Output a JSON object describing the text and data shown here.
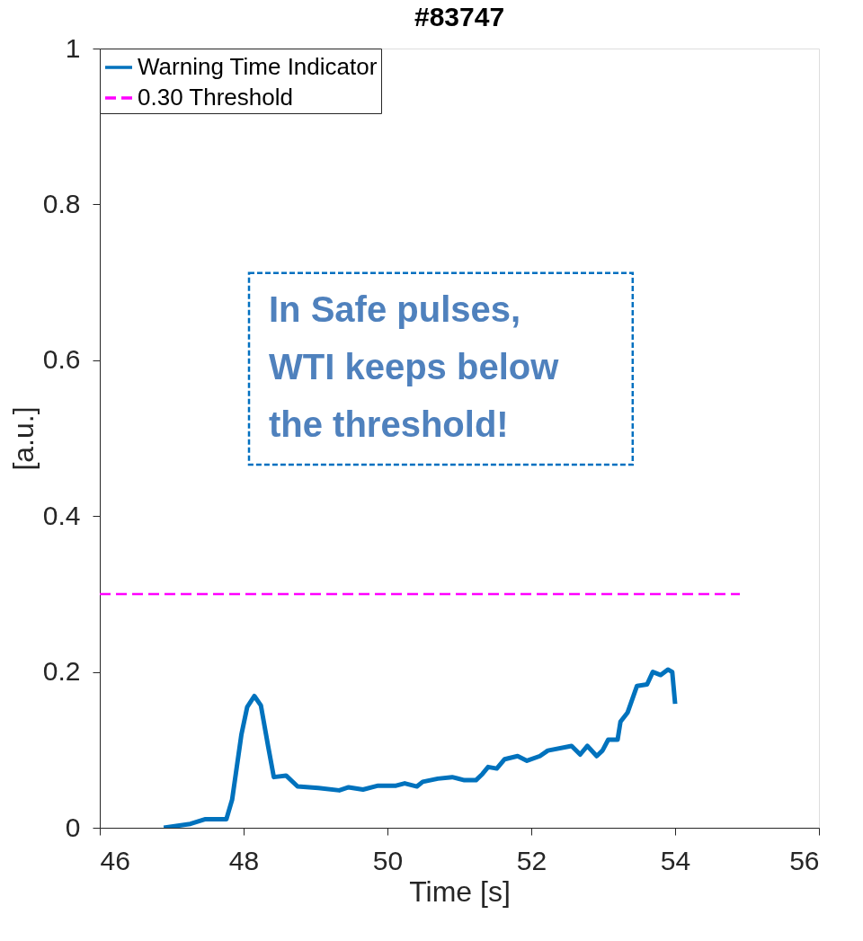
{
  "chart_data": {
    "type": "line",
    "title": "#83747",
    "xlabel": "Time [s]",
    "ylabel": "[a.u.]",
    "xlim": [
      46,
      56
    ],
    "xticks": [
      46,
      48,
      50,
      52,
      54,
      56
    ],
    "ylim": [
      0,
      1
    ],
    "yticks": [
      0,
      0.2,
      0.4,
      0.6,
      0.8,
      1
    ],
    "grid": false,
    "legend": "top left",
    "annotations": [
      "In Safe pulses,\nWTI keeps below\nthe threshold!"
    ],
    "series": [
      {
        "name": "Warning Time Indicator",
        "color": "#0072bd",
        "line_style": "solid",
        "x": [
          46.89,
          47.26,
          47.47,
          47.76,
          47.84,
          47.97,
          48.05,
          48.15,
          48.24,
          48.34,
          48.42,
          48.59,
          48.75,
          49.04,
          49.33,
          49.46,
          49.66,
          49.87,
          50.12,
          50.24,
          50.41,
          50.49,
          50.7,
          50.9,
          51.07,
          51.23,
          51.32,
          51.4,
          51.52,
          51.63,
          51.81,
          51.94,
          52.12,
          52.23,
          52.56,
          52.68,
          52.78,
          52.91,
          52.99,
          53.07,
          53.2,
          53.24,
          53.34,
          53.47,
          53.61,
          53.69,
          53.8,
          53.9,
          53.96,
          54.0
        ],
        "values": [
          0.0,
          0.005,
          0.011,
          0.011,
          0.036,
          0.12,
          0.155,
          0.169,
          0.157,
          0.105,
          0.065,
          0.067,
          0.053,
          0.051,
          0.048,
          0.052,
          0.049,
          0.054,
          0.054,
          0.057,
          0.053,
          0.059,
          0.063,
          0.065,
          0.061,
          0.061,
          0.069,
          0.078,
          0.076,
          0.088,
          0.092,
          0.086,
          0.092,
          0.099,
          0.105,
          0.094,
          0.105,
          0.092,
          0.099,
          0.113,
          0.113,
          0.136,
          0.148,
          0.182,
          0.184,
          0.2,
          0.196,
          0.203,
          0.2,
          0.159
        ]
      },
      {
        "name": "0.30 Threshold",
        "color": "#ff00ff",
        "line_style": "dashed",
        "x": [
          46,
          54.9
        ],
        "values": [
          0.3,
          0.3
        ]
      }
    ]
  }
}
